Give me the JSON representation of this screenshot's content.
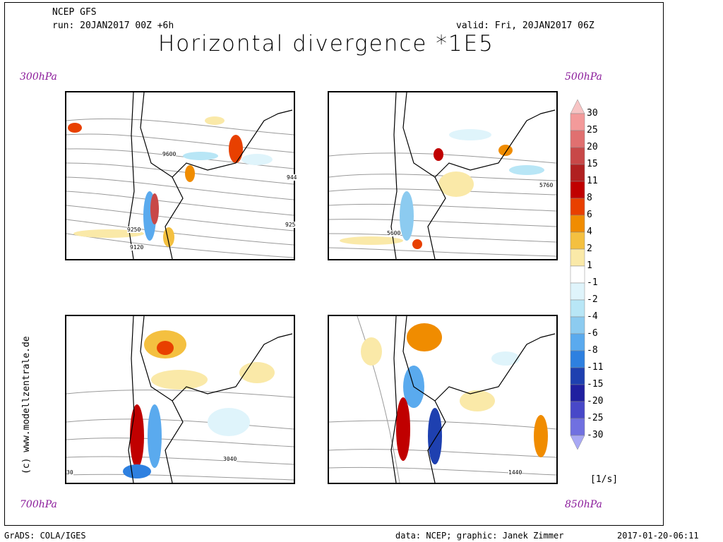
{
  "header": {
    "model": "NCEP GFS",
    "run": "run: 20JAN2017 00Z +6h",
    "valid": "valid: Fri, 20JAN2017 06Z",
    "title": "Horizontal divergence *1E5"
  },
  "levels": {
    "top_left": "300hPa",
    "top_right": "500hPa",
    "bottom_left": "700hPa",
    "bottom_right": "850hPa"
  },
  "panels": {
    "p300": {
      "contours": [
        "9600",
        "9250",
        "9120",
        "944",
        "925"
      ]
    },
    "p500": {
      "contours": [
        "5760",
        "5600"
      ]
    },
    "p700": {
      "contours": [
        "3040",
        "30"
      ]
    },
    "p850": {
      "contours": [
        "1440"
      ]
    }
  },
  "colorbar": {
    "unit": "[1/s]",
    "levels": [
      "30",
      "25",
      "20",
      "15",
      "11",
      "8",
      "6",
      "4",
      "2",
      "1",
      "-1",
      "-2",
      "-4",
      "-6",
      "-8",
      "-11",
      "-15",
      "-20",
      "-25",
      "-30"
    ],
    "colors": [
      "#f7c4c4",
      "#f39a9a",
      "#e07070",
      "#c84848",
      "#b02020",
      "#c00000",
      "#e84000",
      "#f08c00",
      "#f4c040",
      "#fae9a8",
      "#ffffff",
      "#dff4fb",
      "#b8e6f6",
      "#8ccbf0",
      "#5aaaee",
      "#2e80e0",
      "#1e40b0",
      "#2020a0",
      "#4848c8",
      "#7070e0",
      "#a8a8f4"
    ]
  },
  "watermark": "(c) www.modellzentrale.de",
  "footer": {
    "left": "GrADS: COLA/IGES",
    "middle": "data: NCEP; graphic: Janek Zimmer",
    "right": "2017-01-20-06:11"
  }
}
